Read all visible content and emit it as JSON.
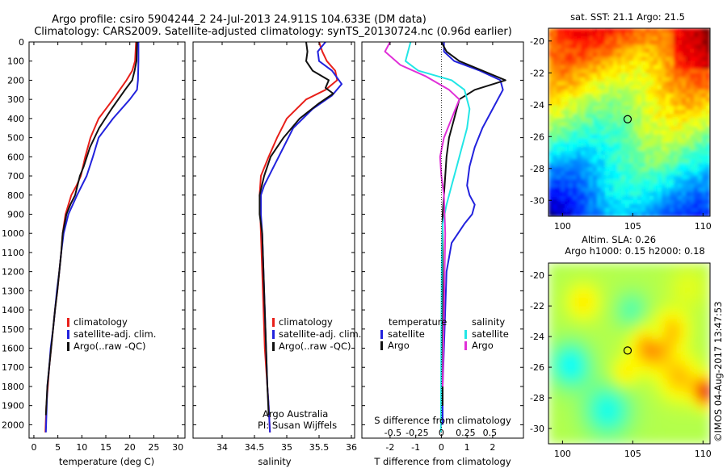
{
  "figure": {
    "title1": "Argo profile: csiro 5904244_2 24-Jul-2013 24.911S 104.633E (DM data)",
    "title2": "Climatology: CARS2009. Satellite-adjusted climatology: synTS_20130724.nc (0.96d earlier)",
    "side_label": "©IMOS 04-Aug-2017 13:47:53",
    "credit1": "Argo Australia",
    "credit2": "PI: Susan Wijffels"
  },
  "colors": {
    "climatology": "#e8201a",
    "satellite": "#2222dd",
    "argo": "#111111",
    "sal_satellite": "#22e6e6",
    "sal_argo": "#e030d8"
  },
  "chart_data": [
    {
      "type": "line",
      "xlabel": "temperature (deg C)",
      "ylabel": "",
      "xlim": [
        -1,
        31.5
      ],
      "ylim": [
        2070,
        0
      ],
      "xticks": [
        0,
        5,
        10,
        15,
        20,
        25,
        30
      ],
      "yticks": [
        0,
        100,
        200,
        300,
        400,
        500,
        600,
        700,
        800,
        900,
        1000,
        1100,
        1200,
        1300,
        1400,
        1500,
        1600,
        1700,
        1800,
        1900,
        2000
      ],
      "legend": [
        "climatology",
        "satellite-adj. clim.",
        "Argo(..raw -QC)"
      ],
      "series": [
        {
          "name": "climatology",
          "color": "#e8201a",
          "x": [
            21.3,
            21.1,
            20.5,
            19.3,
            16.5,
            13.5,
            11.8,
            10.7,
            9.8,
            8.9,
            7.8,
            6.6,
            6.0,
            5.7,
            5.3,
            4.9,
            4.4,
            4.0,
            3.6,
            3.2,
            2.9,
            2.6,
            2.4
          ],
          "y": [
            0,
            100,
            150,
            200,
            300,
            400,
            500,
            600,
            700,
            750,
            800,
            900,
            1000,
            1100,
            1200,
            1300,
            1400,
            1500,
            1600,
            1700,
            1800,
            1900,
            2040
          ]
        },
        {
          "name": "satellite-adj. clim.",
          "color": "#2222dd",
          "x": [
            21.8,
            21.8,
            21.7,
            21.5,
            20.0,
            16.5,
            13.5,
            12.3,
            11.0,
            9.0,
            7.2,
            6.2,
            5.7,
            5.3,
            4.8,
            4.4,
            4.0,
            3.5,
            3.2,
            2.8,
            2.5
          ],
          "y": [
            0,
            100,
            200,
            250,
            300,
            400,
            500,
            600,
            700,
            800,
            900,
            1000,
            1100,
            1200,
            1300,
            1400,
            1500,
            1600,
            1700,
            1800,
            2040
          ]
        },
        {
          "name": "Argo(..raw -QC)",
          "color": "#111111",
          "x": [
            21.5,
            21.4,
            21.0,
            20.5,
            19.0,
            16.2,
            13.6,
            11.7,
            10.4,
            9.6,
            8.6,
            7.6,
            6.8,
            6.0,
            5.7,
            5.3,
            4.9,
            4.4,
            4.0,
            3.6,
            3.2,
            2.8,
            2.5
          ],
          "y": [
            0,
            100,
            150,
            200,
            250,
            350,
            450,
            550,
            650,
            700,
            800,
            850,
            900,
            1000,
            1100,
            1200,
            1300,
            1400,
            1500,
            1600,
            1700,
            1800,
            1950
          ]
        }
      ]
    },
    {
      "type": "line",
      "xlabel": "salinity",
      "xlim": [
        33.55,
        36.05
      ],
      "ylim": [
        2070,
        0
      ],
      "xticks": [
        34,
        34.5,
        35,
        35.5,
        36
      ],
      "xticklabels": [
        "34",
        "34.5",
        "35",
        "35.5",
        "36"
      ],
      "legend": [
        "climatology",
        "satellite-adj. clim.",
        "Argo(..raw -QC)"
      ],
      "series": [
        {
          "name": "climatology",
          "color": "#e8201a",
          "x": [
            35.5,
            35.55,
            35.62,
            35.75,
            35.78,
            35.6,
            35.3,
            35.0,
            34.85,
            34.72,
            34.6,
            34.58,
            34.59,
            34.6,
            34.62,
            34.64,
            34.66,
            34.68,
            34.7,
            34.72,
            34.74
          ],
          "y": [
            0,
            50,
            100,
            150,
            200,
            250,
            300,
            400,
            500,
            600,
            700,
            800,
            900,
            1000,
            1200,
            1400,
            1600,
            1700,
            1800,
            1900,
            2040
          ]
        },
        {
          "name": "satellite-adj. clim.",
          "color": "#2222dd",
          "x": [
            35.6,
            35.48,
            35.5,
            35.7,
            35.85,
            35.7,
            35.4,
            35.1,
            34.95,
            34.8,
            34.65,
            34.6,
            34.6,
            34.62,
            34.64,
            34.66,
            34.68,
            34.7,
            34.72,
            34.74
          ],
          "y": [
            0,
            50,
            100,
            150,
            220,
            280,
            350,
            450,
            550,
            650,
            750,
            800,
            900,
            1000,
            1200,
            1400,
            1600,
            1800,
            1900,
            2040
          ]
        },
        {
          "name": "Argo(..raw -QC)",
          "color": "#111111",
          "x": [
            35.3,
            35.32,
            35.3,
            35.4,
            35.65,
            35.6,
            35.72,
            35.5,
            35.2,
            34.95,
            34.75,
            34.65,
            34.58,
            34.58,
            34.62,
            34.64,
            34.66,
            34.68,
            34.7,
            34.72
          ],
          "y": [
            0,
            50,
            100,
            150,
            200,
            240,
            270,
            320,
            400,
            500,
            600,
            700,
            800,
            900,
            1000,
            1200,
            1400,
            1600,
            1800,
            1950
          ]
        }
      ]
    },
    {
      "type": "line",
      "xlabel": "T difference from climatology",
      "title_bottom": "S difference from climatology",
      "xlim": [
        -3.1,
        3.2
      ],
      "ylim": [
        2070,
        0
      ],
      "xticks": [
        -2,
        -1,
        0,
        1,
        2
      ],
      "top_ticks": [
        -0.5,
        -0.25,
        0,
        0.25,
        0.5
      ],
      "top_ticklabels": [
        "-0.5",
        "-0.25",
        "0",
        "0.25",
        "0.5"
      ],
      "legend_headers": [
        "temperature",
        "salinity"
      ],
      "legend": [
        "satellite",
        "Argo",
        "satellite",
        "Argo"
      ],
      "series": [
        {
          "name": "satellite",
          "color": "#2222dd",
          "x": [
            0.1,
            0.1,
            0.5,
            1.5,
            2.3,
            2.4,
            2.0,
            1.6,
            1.3,
            1.1,
            1.0,
            1.1,
            1.3,
            1.2,
            0.9,
            0.4,
            0.2,
            0.15,
            0.1,
            0.05,
            0.05
          ],
          "y": [
            0,
            50,
            100,
            150,
            200,
            250,
            350,
            450,
            550,
            650,
            750,
            800,
            850,
            900,
            950,
            1050,
            1200,
            1400,
            1600,
            1800,
            2000
          ]
        },
        {
          "name": "Argo",
          "color": "#111111",
          "x": [
            0.0,
            0.2,
            0.7,
            1.6,
            2.5,
            1.3,
            0.7,
            0.5,
            0.3,
            0.2,
            0.15,
            0.1,
            0.05,
            0.05,
            0.05,
            0.05
          ],
          "y": [
            0,
            50,
            100,
            150,
            200,
            250,
            300,
            400,
            500,
            600,
            700,
            800,
            900,
            1200,
            1600,
            1900
          ]
        },
        {
          "name": "satellite",
          "color": "#22e6e6",
          "x": [
            -1.2,
            -1.4,
            -0.9,
            0.4,
            0.9,
            1.1,
            1.0,
            0.8,
            0.6,
            0.4,
            0.2,
            0.05,
            0.02,
            0.0,
            -0.02
          ],
          "y": [
            0,
            100,
            150,
            200,
            250,
            350,
            450,
            550,
            650,
            750,
            850,
            950,
            1100,
            1500,
            2040
          ]
        },
        {
          "name": "Argo",
          "color": "#e030d8",
          "x": [
            -2.0,
            -2.2,
            -1.6,
            -0.6,
            0.3,
            0.7,
            0.4,
            0.1,
            -0.05,
            0.0,
            0.1,
            0.15,
            0.1,
            0.05
          ],
          "y": [
            0,
            50,
            120,
            180,
            250,
            300,
            400,
            500,
            600,
            700,
            800,
            1000,
            1400,
            1800
          ]
        }
      ]
    },
    {
      "type": "heatmap",
      "title": "sat. SST: 21.1  Argo: 21.5",
      "xlim": [
        99,
        110.5
      ],
      "ylim": [
        -31,
        -19.2
      ],
      "xticks": [
        100,
        105,
        110
      ],
      "yticks": [
        -20,
        -22,
        -24,
        -26,
        -28,
        -30
      ],
      "marker": {
        "lon": 104.633,
        "lat": -24.911
      }
    },
    {
      "type": "heatmap",
      "title": "Altim. SLA: 0.26",
      "subtitle": "Argo h1000: 0.15 h2000: 0.18",
      "xlim": [
        99,
        110.5
      ],
      "ylim": [
        -31,
        -19.2
      ],
      "xticks": [
        100,
        105,
        110
      ],
      "yticks": [
        -20,
        -22,
        -24,
        -26,
        -28,
        -30
      ],
      "marker": {
        "lon": 104.633,
        "lat": -24.911
      }
    }
  ]
}
